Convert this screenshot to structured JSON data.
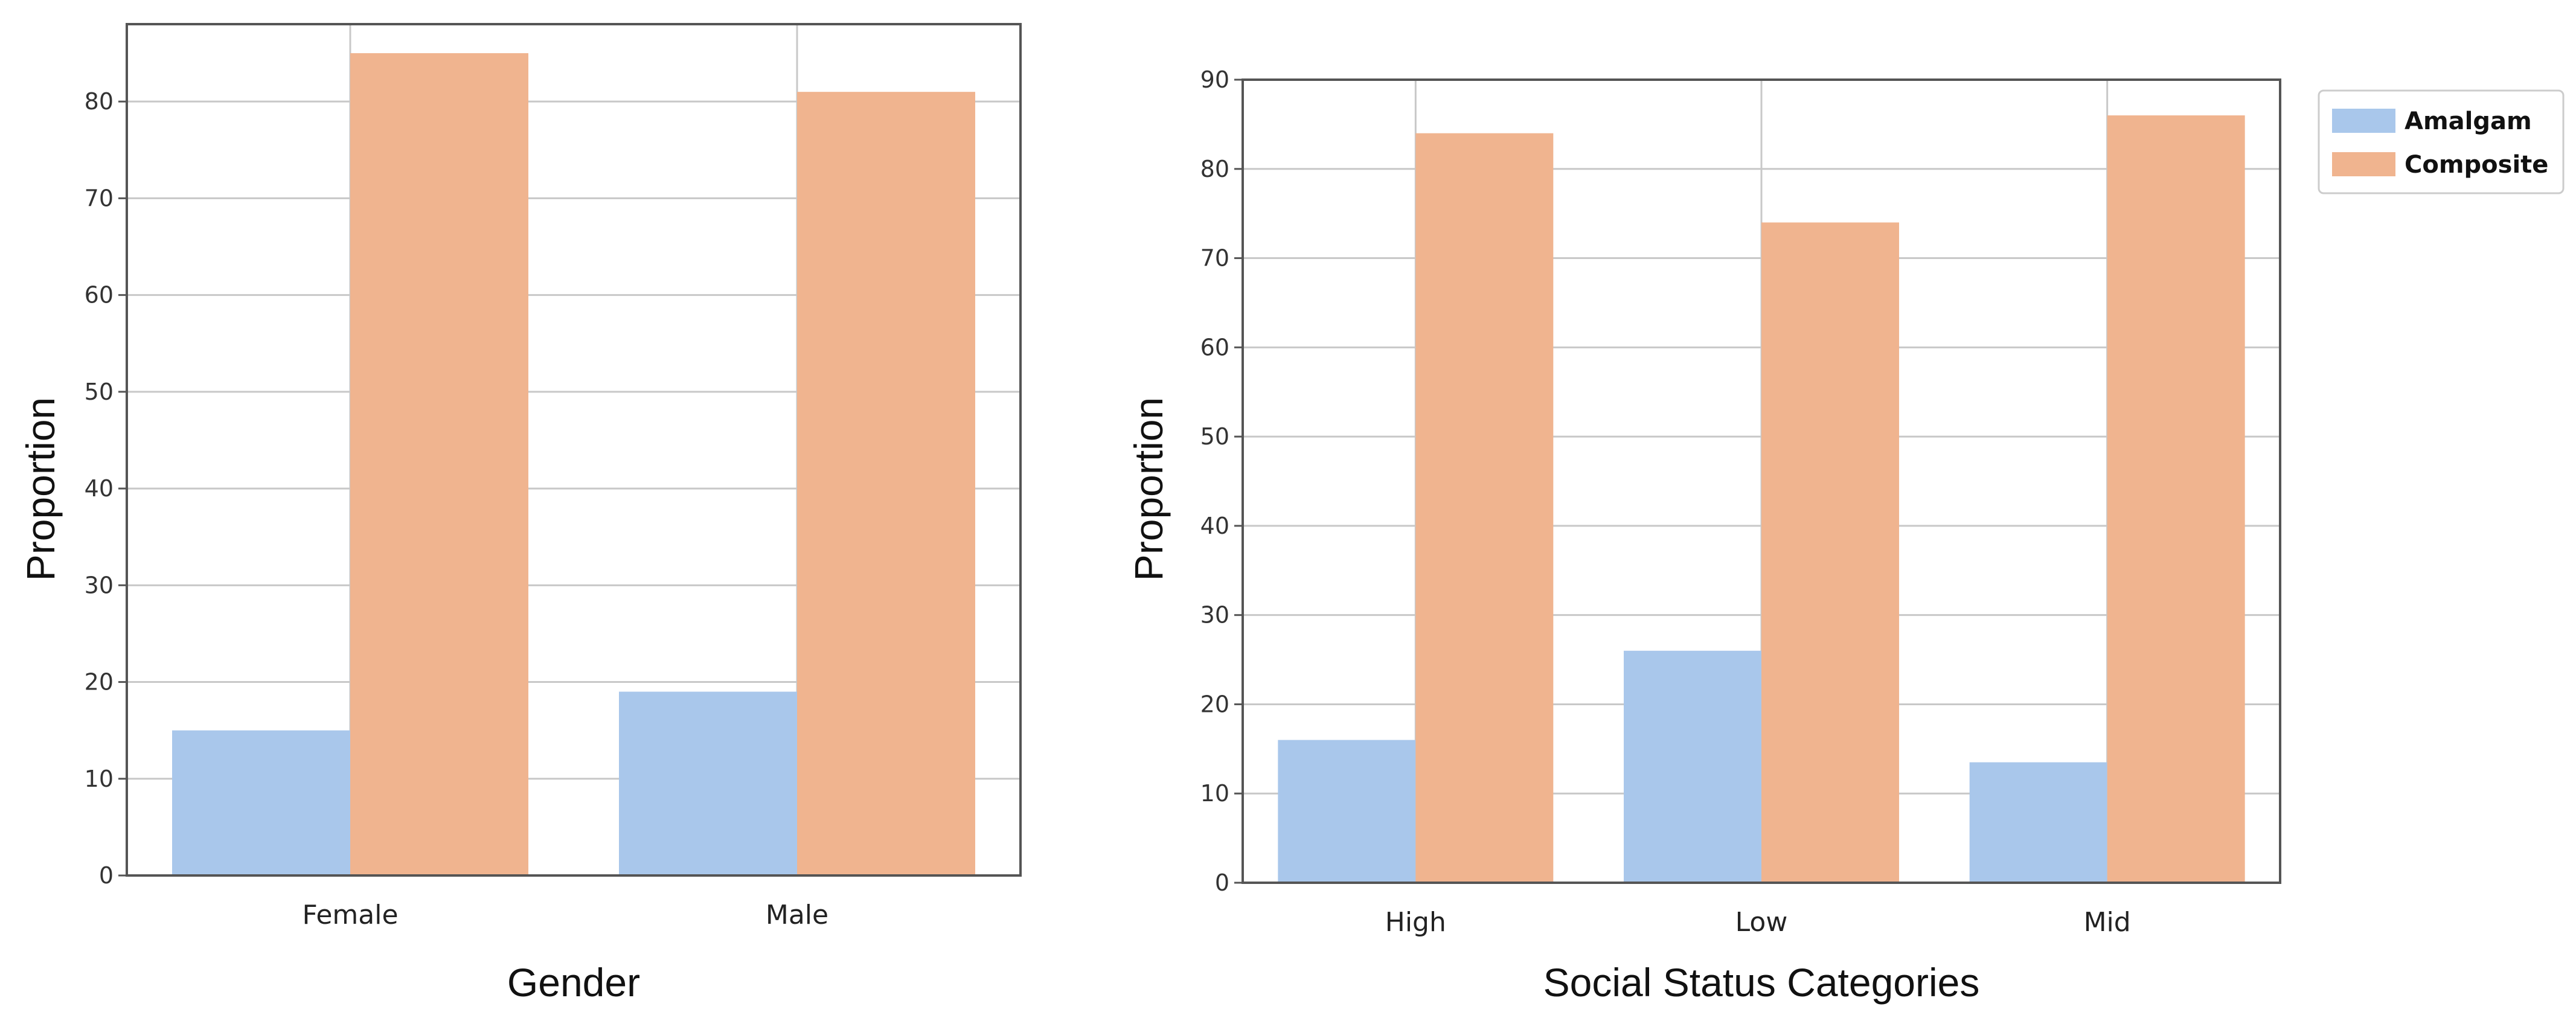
{
  "colors": {
    "amalgam": "#a9c7eb",
    "composite": "#f0b48f",
    "grid": "#c8c8c8",
    "frame": "#555555",
    "legend_border": "#cccccc"
  },
  "legend": {
    "position": "right",
    "entries": [
      "Amalgam",
      "Composite"
    ]
  },
  "chart_data": [
    {
      "type": "bar",
      "title": "",
      "xlabel": "Gender",
      "ylabel": "Proportion",
      "categories": [
        "Female",
        "Male"
      ],
      "ylim": [
        0,
        88
      ],
      "yticks": [
        "0",
        "10",
        "20",
        "30",
        "40",
        "50",
        "60",
        "70",
        "80"
      ],
      "grid": true,
      "series": [
        {
          "name": "Amalgam",
          "values": [
            15,
            19
          ]
        },
        {
          "name": "Composite",
          "values": [
            85,
            81
          ]
        }
      ]
    },
    {
      "type": "bar",
      "title": "",
      "xlabel": "Social Status Categories",
      "ylabel": "Proportion",
      "categories": [
        "High",
        "Low",
        "Mid"
      ],
      "ylim": [
        0,
        90
      ],
      "yticks": [
        "0",
        "10",
        "20",
        "30",
        "40",
        "50",
        "60",
        "70",
        "80",
        "90"
      ],
      "grid": true,
      "series": [
        {
          "name": "Amalgam",
          "values": [
            16,
            26,
            13.5
          ]
        },
        {
          "name": "Composite",
          "values": [
            84,
            74,
            86
          ]
        }
      ]
    }
  ]
}
